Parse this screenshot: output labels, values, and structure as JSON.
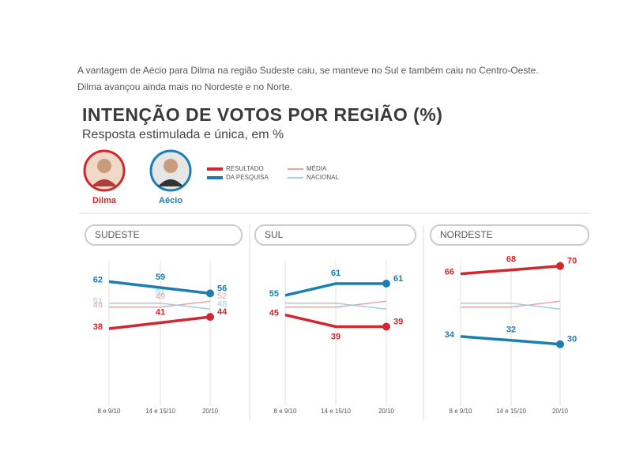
{
  "intro": [
    "A vantagem de Aécio para Dilma na região Sudeste caiu, se manteve no Sul e também caiu no Centro-Oeste.",
    "Dilma avançou ainda mais no Nordeste e no Norte."
  ],
  "title": "INTENÇÃO DE VOTOS POR REGIÃO (%)",
  "subtitle": "Resposta estimulada e única, em %",
  "candidates": [
    {
      "name": "Dilma",
      "color": "#d0282e"
    },
    {
      "name": "Aécio",
      "color": "#1b7eb0"
    }
  ],
  "legend": {
    "result": [
      "RESULTADO",
      "DA PESQUISA"
    ],
    "average": [
      "MÉDIA",
      "NACIONAL"
    ]
  },
  "chart_data": [
    {
      "type": "line",
      "title": "SUDESTE",
      "categories": [
        "8 e 9/10",
        "14 e 15/10",
        "20/10"
      ],
      "ylim": [
        0,
        80
      ],
      "grid": true,
      "series": [
        {
          "color": "#eba3a3",
          "values": [
            49,
            49,
            52
          ],
          "labels": true,
          "width": 1.5
        },
        {
          "color": "#9dd0e2",
          "values": [
            51,
            51,
            48
          ],
          "labels": true,
          "width": 1.5
        },
        {
          "color": "#d0282e",
          "values": [
            38,
            41,
            44
          ],
          "labels": true,
          "width": 3.5
        },
        {
          "color": "#1b7eb0",
          "values": [
            62,
            59,
            56
          ],
          "labels": true,
          "width": 3.5
        }
      ]
    },
    {
      "type": "line",
      "title": "SUL",
      "categories": [
        "8 e 9/10",
        "14 e 15/10",
        "20/10"
      ],
      "ylim": [
        0,
        80
      ],
      "grid": true,
      "series": [
        {
          "color": "#eba3a3",
          "values": [
            49,
            49,
            52
          ],
          "labels": false,
          "width": 1.5
        },
        {
          "color": "#9dd0e2",
          "values": [
            51,
            51,
            48
          ],
          "labels": false,
          "width": 1.5
        },
        {
          "color": "#d0282e",
          "values": [
            45,
            39,
            39
          ],
          "labels": true,
          "width": 3.5
        },
        {
          "color": "#1b7eb0",
          "values": [
            55,
            61,
            61
          ],
          "labels": true,
          "width": 3.5
        }
      ]
    },
    {
      "type": "line",
      "title": "NORDESTE",
      "categories": [
        "8 e 9/10",
        "14 e 15/10",
        "20/10"
      ],
      "ylim": [
        0,
        80
      ],
      "grid": true,
      "series": [
        {
          "color": "#eba3a3",
          "values": [
            49,
            49,
            52
          ],
          "labels": false,
          "width": 1.5
        },
        {
          "color": "#9dd0e2",
          "values": [
            51,
            51,
            48
          ],
          "labels": false,
          "width": 1.5
        },
        {
          "color": "#d0282e",
          "values": [
            66,
            68,
            70
          ],
          "labels": true,
          "width": 3.5
        },
        {
          "color": "#1b7eb0",
          "values": [
            34,
            32,
            30
          ],
          "labels": true,
          "width": 3.5
        }
      ]
    }
  ]
}
